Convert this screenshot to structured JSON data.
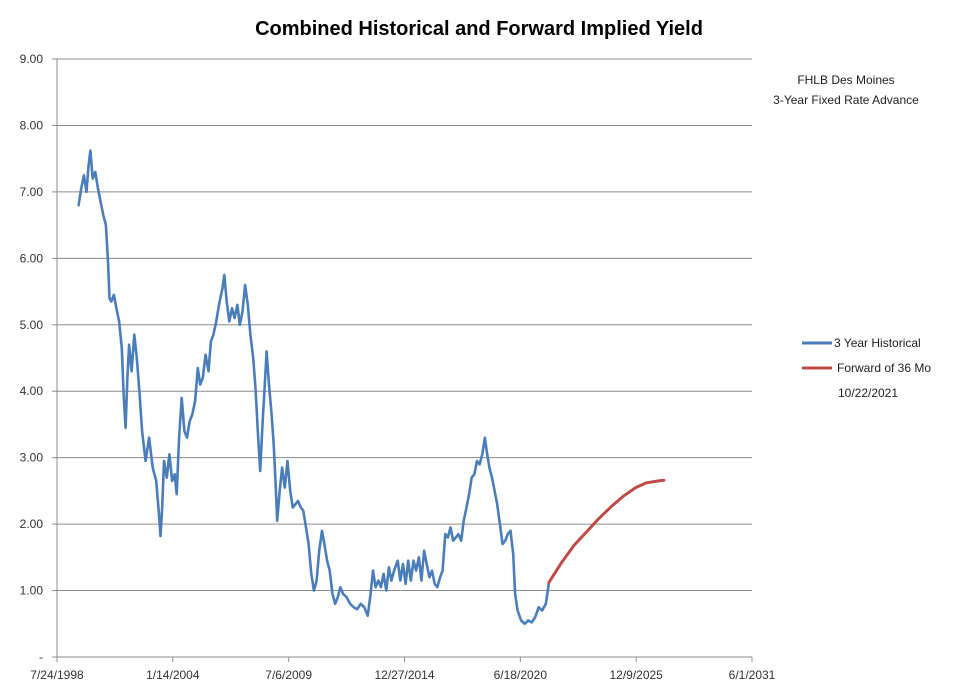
{
  "chart_data": {
    "type": "line",
    "title": "Combined Historical and Forward Implied Yield",
    "annotation": [
      "FHLB Des Moines",
      "3-Year Fixed Rate Advance"
    ],
    "y_ticks": [
      "9.00",
      "8.00",
      "7.00",
      "6.00",
      "5.00",
      "4.00",
      "3.00",
      "2.00",
      "1.00",
      "-"
    ],
    "ylim": [
      0,
      9
    ],
    "x_ticks": [
      "7/24/1998",
      "1/14/2004",
      "7/6/2009",
      "12/27/2014",
      "6/18/2020",
      "12/9/2025",
      "6/1/2031"
    ],
    "xlim": [
      "1998-07-24",
      "2031-06-01"
    ],
    "grid": "horizontal",
    "legend_position": "right",
    "legend_date": "10/22/2021",
    "series": [
      {
        "name": "3 Year Historical",
        "color": "#4a7ebb",
        "points": [
          [
            "1999-08-01",
            6.8
          ],
          [
            "1999-09-15",
            7.05
          ],
          [
            "1999-11-01",
            7.25
          ],
          [
            "1999-12-15",
            7.0
          ],
          [
            "2000-01-20",
            7.4
          ],
          [
            "2000-02-20",
            7.62
          ],
          [
            "2000-04-01",
            7.2
          ],
          [
            "2000-05-15",
            7.3
          ],
          [
            "2000-07-01",
            7.05
          ],
          [
            "2000-08-15",
            6.85
          ],
          [
            "2000-10-01",
            6.65
          ],
          [
            "2000-11-15",
            6.5
          ],
          [
            "2000-12-20",
            5.95
          ],
          [
            "2001-01-15",
            5.4
          ],
          [
            "2001-02-15",
            5.35
          ],
          [
            "2001-04-01",
            5.45
          ],
          [
            "2001-05-15",
            5.25
          ],
          [
            "2001-07-01",
            5.05
          ],
          [
            "2001-08-15",
            4.65
          ],
          [
            "2001-09-20",
            3.9
          ],
          [
            "2001-10-20",
            3.45
          ],
          [
            "2001-11-20",
            4.2
          ],
          [
            "2001-12-20",
            4.7
          ],
          [
            "2002-02-01",
            4.3
          ],
          [
            "2002-03-20",
            4.85
          ],
          [
            "2002-05-01",
            4.5
          ],
          [
            "2002-06-15",
            4.0
          ],
          [
            "2002-08-01",
            3.4
          ],
          [
            "2002-10-01",
            2.95
          ],
          [
            "2002-12-01",
            3.3
          ],
          [
            "2003-02-01",
            2.85
          ],
          [
            "2003-04-01",
            2.65
          ],
          [
            "2003-05-15",
            2.2
          ],
          [
            "2003-06-15",
            1.82
          ],
          [
            "2003-07-15",
            2.25
          ],
          [
            "2003-08-15",
            2.95
          ],
          [
            "2003-10-01",
            2.7
          ],
          [
            "2003-11-15",
            3.05
          ],
          [
            "2004-01-01",
            2.65
          ],
          [
            "2004-02-15",
            2.75
          ],
          [
            "2004-03-20",
            2.45
          ],
          [
            "2004-05-01",
            3.3
          ],
          [
            "2004-06-15",
            3.9
          ],
          [
            "2004-08-01",
            3.4
          ],
          [
            "2004-09-15",
            3.3
          ],
          [
            "2004-11-01",
            3.55
          ],
          [
            "2004-12-15",
            3.65
          ],
          [
            "2005-02-01",
            3.85
          ],
          [
            "2005-03-20",
            4.35
          ],
          [
            "2005-05-01",
            4.1
          ],
          [
            "2005-06-15",
            4.2
          ],
          [
            "2005-08-01",
            4.55
          ],
          [
            "2005-09-20",
            4.3
          ],
          [
            "2005-11-01",
            4.75
          ],
          [
            "2005-12-15",
            4.85
          ],
          [
            "2006-02-01",
            5.05
          ],
          [
            "2006-04-01",
            5.35
          ],
          [
            "2006-05-20",
            5.55
          ],
          [
            "2006-06-20",
            5.75
          ],
          [
            "2006-08-01",
            5.35
          ],
          [
            "2006-09-15",
            5.05
          ],
          [
            "2006-11-01",
            5.25
          ],
          [
            "2006-12-15",
            5.1
          ],
          [
            "2007-02-01",
            5.3
          ],
          [
            "2007-03-15",
            5.0
          ],
          [
            "2007-05-01",
            5.2
          ],
          [
            "2007-06-15",
            5.6
          ],
          [
            "2007-08-01",
            5.3
          ],
          [
            "2007-09-15",
            4.85
          ],
          [
            "2007-11-01",
            4.5
          ],
          [
            "2007-12-15",
            4.0
          ],
          [
            "2008-01-20",
            3.4
          ],
          [
            "2008-03-01",
            2.8
          ],
          [
            "2008-04-10",
            3.5
          ],
          [
            "2008-05-20",
            4.1
          ],
          [
            "2008-06-20",
            4.6
          ],
          [
            "2008-08-01",
            4.1
          ],
          [
            "2008-09-15",
            3.65
          ],
          [
            "2008-10-20",
            3.2
          ],
          [
            "2008-11-20",
            2.65
          ],
          [
            "2008-12-20",
            2.05
          ],
          [
            "2009-02-01",
            2.5
          ],
          [
            "2009-03-15",
            2.85
          ],
          [
            "2009-05-01",
            2.55
          ],
          [
            "2009-06-15",
            2.95
          ],
          [
            "2009-08-01",
            2.5
          ],
          [
            "2009-09-15",
            2.25
          ],
          [
            "2009-11-01",
            2.3
          ],
          [
            "2009-12-15",
            2.35
          ],
          [
            "2010-02-01",
            2.25
          ],
          [
            "2010-03-15",
            2.2
          ],
          [
            "2010-05-01",
            1.95
          ],
          [
            "2010-06-15",
            1.7
          ],
          [
            "2010-08-01",
            1.25
          ],
          [
            "2010-09-15",
            1.0
          ],
          [
            "2010-11-01",
            1.15
          ],
          [
            "2010-12-15",
            1.6
          ],
          [
            "2011-02-01",
            1.9
          ],
          [
            "2011-03-15",
            1.7
          ],
          [
            "2011-05-01",
            1.45
          ],
          [
            "2011-06-15",
            1.3
          ],
          [
            "2011-08-01",
            0.95
          ],
          [
            "2011-09-15",
            0.8
          ],
          [
            "2011-11-01",
            0.9
          ],
          [
            "2011-12-15",
            1.05
          ],
          [
            "2012-02-01",
            0.95
          ],
          [
            "2012-04-01",
            0.9
          ],
          [
            "2012-06-01",
            0.8
          ],
          [
            "2012-08-01",
            0.75
          ],
          [
            "2012-10-01",
            0.72
          ],
          [
            "2012-12-01",
            0.8
          ],
          [
            "2013-02-01",
            0.75
          ],
          [
            "2013-04-01",
            0.62
          ],
          [
            "2013-05-20",
            0.95
          ],
          [
            "2013-07-01",
            1.3
          ],
          [
            "2013-08-15",
            1.05
          ],
          [
            "2013-10-01",
            1.15
          ],
          [
            "2013-11-15",
            1.05
          ],
          [
            "2014-01-01",
            1.25
          ],
          [
            "2014-02-15",
            1.0
          ],
          [
            "2014-04-01",
            1.35
          ],
          [
            "2014-05-15",
            1.15
          ],
          [
            "2014-07-01",
            1.3
          ],
          [
            "2014-09-01",
            1.45
          ],
          [
            "2014-10-15",
            1.15
          ],
          [
            "2014-12-01",
            1.4
          ],
          [
            "2015-01-15",
            1.1
          ],
          [
            "2015-03-01",
            1.45
          ],
          [
            "2015-04-15",
            1.15
          ],
          [
            "2015-06-01",
            1.45
          ],
          [
            "2015-07-15",
            1.3
          ],
          [
            "2015-09-01",
            1.5
          ],
          [
            "2015-10-15",
            1.15
          ],
          [
            "2015-12-01",
            1.6
          ],
          [
            "2016-01-15",
            1.4
          ],
          [
            "2016-03-01",
            1.2
          ],
          [
            "2016-04-15",
            1.3
          ],
          [
            "2016-06-01",
            1.1
          ],
          [
            "2016-07-15",
            1.05
          ],
          [
            "2016-09-01",
            1.2
          ],
          [
            "2016-10-15",
            1.3
          ],
          [
            "2016-12-01",
            1.85
          ],
          [
            "2017-01-15",
            1.8
          ],
          [
            "2017-03-01",
            1.95
          ],
          [
            "2017-04-15",
            1.75
          ],
          [
            "2017-06-01",
            1.8
          ],
          [
            "2017-07-15",
            1.85
          ],
          [
            "2017-09-01",
            1.75
          ],
          [
            "2017-10-15",
            2.05
          ],
          [
            "2017-12-01",
            2.25
          ],
          [
            "2018-01-15",
            2.45
          ],
          [
            "2018-03-01",
            2.7
          ],
          [
            "2018-04-15",
            2.75
          ],
          [
            "2018-06-01",
            2.95
          ],
          [
            "2018-07-15",
            2.9
          ],
          [
            "2018-09-01",
            3.05
          ],
          [
            "2018-10-15",
            3.3
          ],
          [
            "2018-11-15",
            3.1
          ],
          [
            "2019-01-01",
            2.85
          ],
          [
            "2019-02-15",
            2.7
          ],
          [
            "2019-04-01",
            2.5
          ],
          [
            "2019-05-15",
            2.3
          ],
          [
            "2019-07-01",
            2.0
          ],
          [
            "2019-08-15",
            1.7
          ],
          [
            "2019-10-01",
            1.75
          ],
          [
            "2019-11-15",
            1.85
          ],
          [
            "2020-01-01",
            1.9
          ],
          [
            "2020-02-15",
            1.55
          ],
          [
            "2020-03-20",
            0.95
          ],
          [
            "2020-05-01",
            0.7
          ],
          [
            "2020-07-01",
            0.55
          ],
          [
            "2020-09-01",
            0.5
          ],
          [
            "2020-11-01",
            0.55
          ],
          [
            "2021-01-01",
            0.52
          ],
          [
            "2021-03-01",
            0.6
          ],
          [
            "2021-05-01",
            0.75
          ],
          [
            "2021-07-01",
            0.7
          ],
          [
            "2021-09-01",
            0.8
          ],
          [
            "2021-10-22",
            1.1
          ]
        ]
      },
      {
        "name": "Forward of 36 Mo",
        "color": "#be4b48",
        "points": [
          [
            "2021-10-22",
            1.12
          ],
          [
            "2022-06-01",
            1.42
          ],
          [
            "2023-01-01",
            1.68
          ],
          [
            "2023-08-01",
            1.88
          ],
          [
            "2024-03-01",
            2.08
          ],
          [
            "2024-10-01",
            2.26
          ],
          [
            "2025-05-01",
            2.42
          ],
          [
            "2025-12-01",
            2.55
          ],
          [
            "2026-06-01",
            2.62
          ],
          [
            "2027-01-01",
            2.65
          ],
          [
            "2027-04-01",
            2.66
          ]
        ]
      }
    ]
  }
}
